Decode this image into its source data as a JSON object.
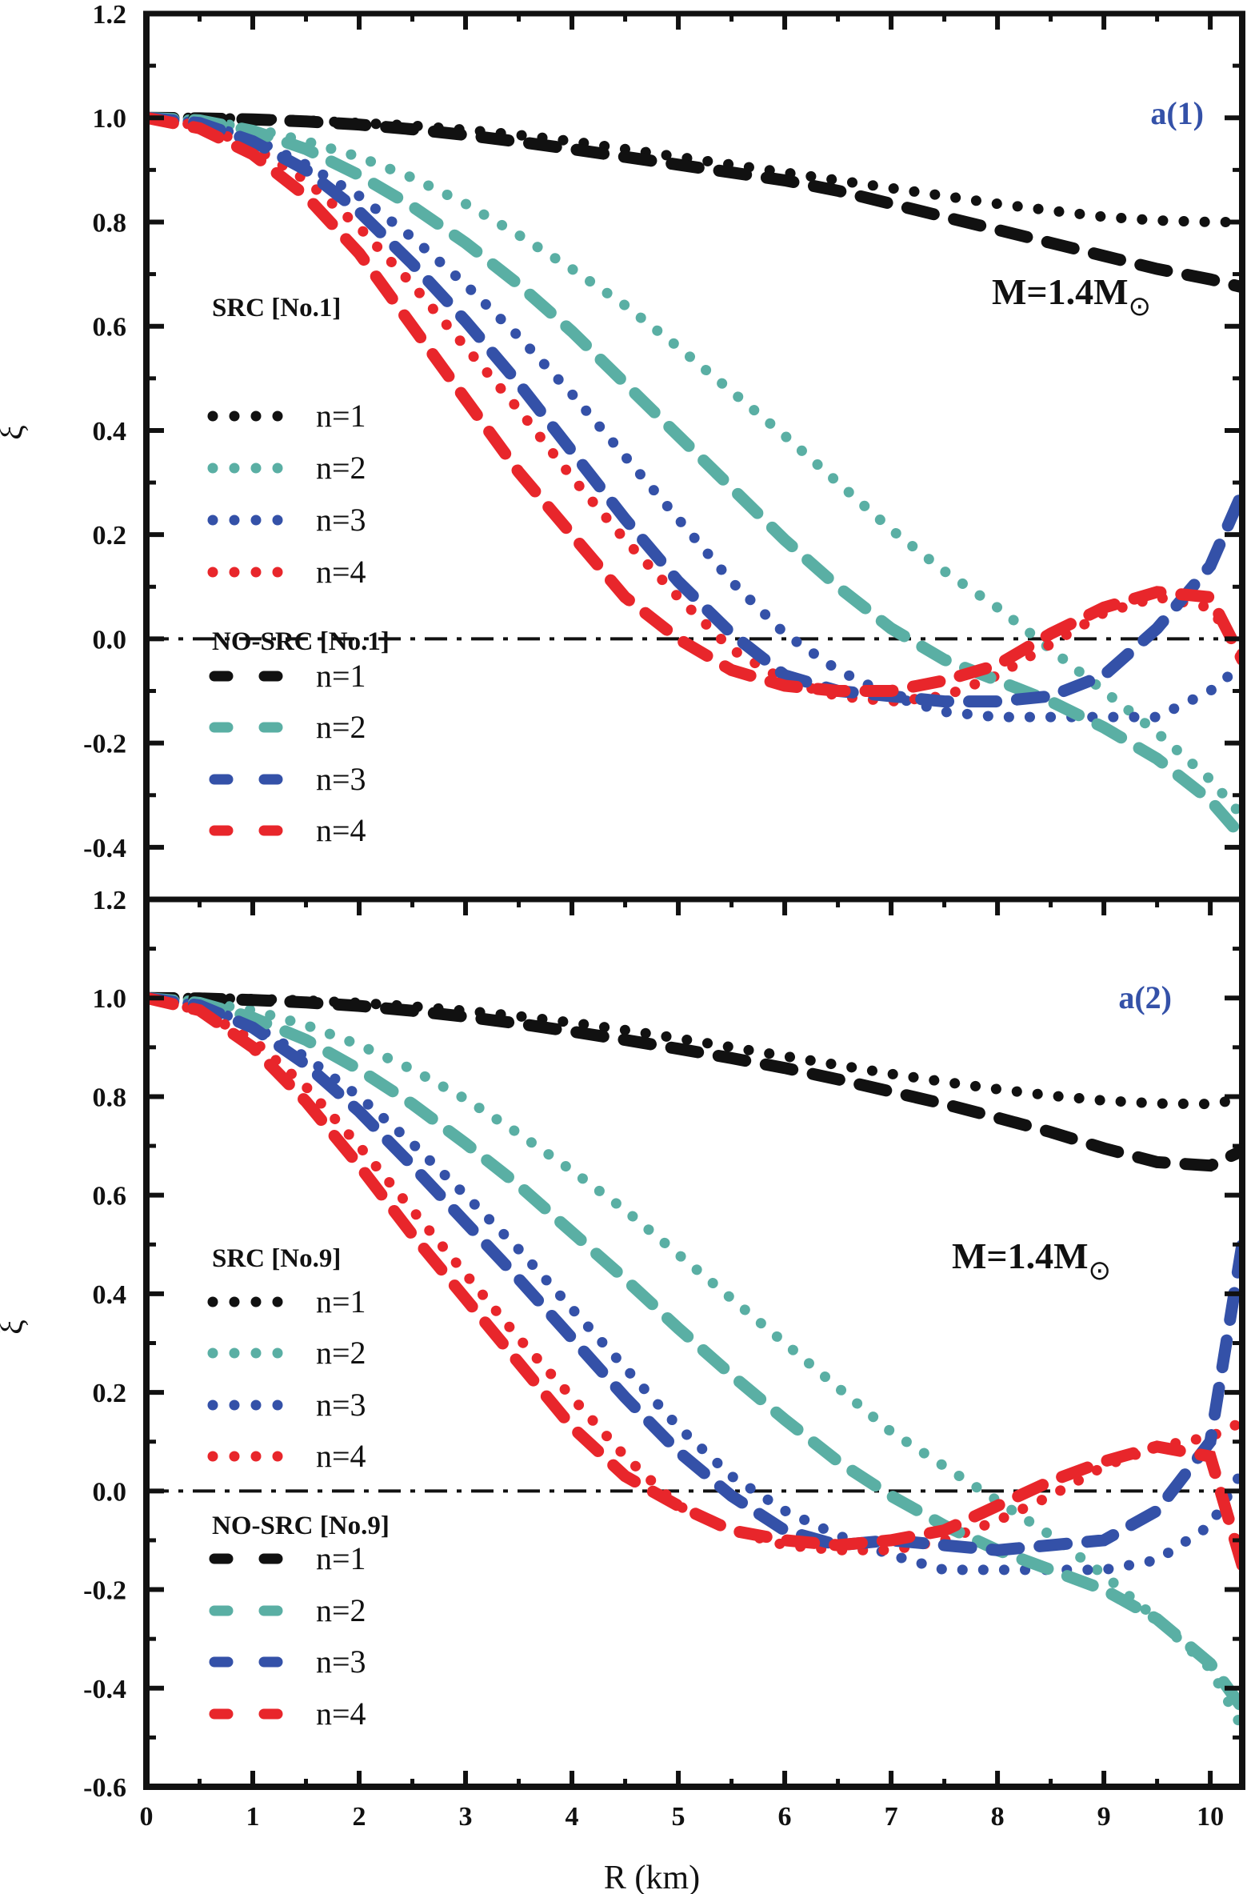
{
  "chart_data": [
    {
      "type": "line",
      "panel_tag": "a(1)",
      "annotation": "M=1.4M",
      "annotation_subscript": "⊙",
      "xlabel": "",
      "ylabel": "ξ",
      "xlim": [
        0,
        10.3
      ],
      "ylim": [
        -0.6,
        1.2
      ],
      "yticks": [
        "-0.4",
        "-0.2",
        "0.0",
        "0.2",
        "0.4",
        "0.6",
        "0.8",
        "1.0",
        "1.2"
      ],
      "ytick_values": [
        -0.4,
        -0.2,
        0.0,
        0.2,
        0.4,
        0.6,
        0.8,
        1.0,
        1.2
      ],
      "reference_line": {
        "y": 0.0,
        "style": "dash-dot"
      },
      "legend": [
        {
          "title": "SRC [No.1]",
          "style": "dotted",
          "entries": [
            "n=1",
            "n=2",
            "n=3",
            "n=4"
          ]
        },
        {
          "title": "NO-SRC [No.1]",
          "style": "dashed",
          "entries": [
            "n=1",
            "n=2",
            "n=3",
            "n=4"
          ]
        }
      ],
      "legend_position": "left",
      "x": [
        0,
        0.5,
        1,
        1.5,
        2,
        2.5,
        3,
        3.5,
        4,
        4.5,
        5,
        5.5,
        6,
        6.5,
        7,
        7.5,
        8,
        8.5,
        9,
        9.5,
        10,
        10.3
      ],
      "series": [
        {
          "name": "SRC n=1",
          "style": "dotted",
          "color": "#111111",
          "values": [
            1.0,
            1.0,
            0.998,
            0.995,
            0.99,
            0.985,
            0.977,
            0.967,
            0.955,
            0.94,
            0.925,
            0.91,
            0.895,
            0.88,
            0.865,
            0.85,
            0.835,
            0.822,
            0.81,
            0.803,
            0.8,
            0.8
          ]
        },
        {
          "name": "SRC n=2",
          "style": "dotted",
          "color": "#5aafa4",
          "values": [
            1.0,
            0.995,
            0.98,
            0.955,
            0.925,
            0.885,
            0.835,
            0.775,
            0.71,
            0.64,
            0.56,
            0.475,
            0.39,
            0.3,
            0.21,
            0.13,
            0.06,
            -0.02,
            -0.1,
            -0.18,
            -0.27,
            -0.34
          ]
        },
        {
          "name": "SRC n=3",
          "style": "dotted",
          "color": "#3451a8",
          "values": [
            1.0,
            0.99,
            0.96,
            0.91,
            0.85,
            0.77,
            0.68,
            0.58,
            0.47,
            0.35,
            0.23,
            0.11,
            0.01,
            -0.06,
            -0.11,
            -0.14,
            -0.15,
            -0.15,
            -0.15,
            -0.15,
            -0.1,
            -0.05
          ]
        },
        {
          "name": "SRC n=4",
          "style": "dotted",
          "color": "#e8262b",
          "values": [
            1.0,
            0.985,
            0.945,
            0.88,
            0.79,
            0.68,
            0.56,
            0.44,
            0.31,
            0.19,
            0.08,
            -0.02,
            -0.08,
            -0.11,
            -0.12,
            -0.11,
            -0.07,
            -0.01,
            0.05,
            0.08,
            0.06,
            -0.03
          ]
        },
        {
          "name": "NO-SRC n=1",
          "style": "dashed",
          "color": "#111111",
          "values": [
            1.0,
            0.999,
            0.997,
            0.993,
            0.987,
            0.978,
            0.967,
            0.954,
            0.94,
            0.925,
            0.91,
            0.895,
            0.88,
            0.86,
            0.835,
            0.81,
            0.785,
            0.76,
            0.735,
            0.71,
            0.69,
            0.675
          ]
        },
        {
          "name": "NO-SRC n=2",
          "style": "dashed",
          "color": "#5aafa4",
          "values": [
            1.0,
            0.995,
            0.975,
            0.94,
            0.89,
            0.83,
            0.76,
            0.68,
            0.59,
            0.49,
            0.39,
            0.29,
            0.19,
            0.1,
            0.02,
            -0.04,
            -0.08,
            -0.12,
            -0.17,
            -0.23,
            -0.31,
            -0.38
          ]
        },
        {
          "name": "NO-SRC n=3",
          "style": "dashed",
          "color": "#3451a8",
          "values": [
            1.0,
            0.99,
            0.955,
            0.9,
            0.82,
            0.72,
            0.61,
            0.49,
            0.36,
            0.23,
            0.11,
            0.01,
            -0.07,
            -0.1,
            -0.11,
            -0.12,
            -0.12,
            -0.11,
            -0.07,
            0.02,
            0.14,
            0.28
          ]
        },
        {
          "name": "NO-SRC n=4",
          "style": "dashed",
          "color": "#e8262b",
          "values": [
            1.0,
            0.98,
            0.93,
            0.85,
            0.74,
            0.6,
            0.46,
            0.32,
            0.2,
            0.08,
            0.0,
            -0.06,
            -0.09,
            -0.1,
            -0.1,
            -0.08,
            -0.05,
            0.01,
            0.06,
            0.09,
            0.08,
            -0.04
          ]
        }
      ]
    },
    {
      "type": "line",
      "panel_tag": "a(2)",
      "annotation": "M=1.4M",
      "annotation_subscript": "⊙",
      "xlabel": "R (km)",
      "ylabel": "ξ",
      "xlim": [
        0,
        10.3
      ],
      "ylim": [
        -0.6,
        1.2
      ],
      "xticks": [
        "0",
        "1",
        "2",
        "3",
        "4",
        "5",
        "6",
        "7",
        "8",
        "9",
        "10"
      ],
      "xtick_values": [
        0,
        1,
        2,
        3,
        4,
        5,
        6,
        7,
        8,
        9,
        10
      ],
      "yticks": [
        "-0.6",
        "-0.4",
        "-0.2",
        "0.0",
        "0.2",
        "0.4",
        "0.6",
        "0.8",
        "1.0",
        "1.2"
      ],
      "ytick_values": [
        -0.6,
        -0.4,
        -0.2,
        0.0,
        0.2,
        0.4,
        0.6,
        0.8,
        1.0,
        1.2
      ],
      "reference_line": {
        "y": 0.0,
        "style": "dash-dot"
      },
      "legend": [
        {
          "title": "SRC [No.9]",
          "style": "dotted",
          "entries": [
            "n=1",
            "n=2",
            "n=3",
            "n=4"
          ]
        },
        {
          "title": "NO-SRC [No.9]",
          "style": "dashed",
          "entries": [
            "n=1",
            "n=2",
            "n=3",
            "n=4"
          ]
        }
      ],
      "legend_position": "left",
      "x": [
        0,
        0.5,
        1,
        1.5,
        2,
        2.5,
        3,
        3.5,
        4,
        4.5,
        5,
        5.5,
        6,
        6.5,
        7,
        7.5,
        8,
        8.5,
        9,
        9.5,
        10,
        10.3
      ],
      "series": [
        {
          "name": "SRC n=1",
          "style": "dotted",
          "color": "#111111",
          "values": [
            1.0,
            1.0,
            0.998,
            0.995,
            0.99,
            0.983,
            0.974,
            0.963,
            0.95,
            0.935,
            0.918,
            0.9,
            0.882,
            0.864,
            0.846,
            0.83,
            0.815,
            0.802,
            0.792,
            0.786,
            0.785,
            0.795
          ]
        },
        {
          "name": "SRC n=2",
          "style": "dotted",
          "color": "#5aafa4",
          "values": [
            1.0,
            0.993,
            0.975,
            0.945,
            0.905,
            0.855,
            0.795,
            0.725,
            0.65,
            0.57,
            0.48,
            0.39,
            0.3,
            0.21,
            0.12,
            0.05,
            -0.02,
            -0.09,
            -0.17,
            -0.26,
            -0.36,
            -0.48
          ]
        },
        {
          "name": "SRC n=3",
          "style": "dotted",
          "color": "#3451a8",
          "values": [
            1.0,
            0.985,
            0.945,
            0.88,
            0.8,
            0.705,
            0.6,
            0.49,
            0.37,
            0.25,
            0.13,
            0.03,
            -0.04,
            -0.09,
            -0.13,
            -0.16,
            -0.16,
            -0.16,
            -0.16,
            -0.14,
            -0.07,
            0.04
          ]
        },
        {
          "name": "SRC n=4",
          "style": "dotted",
          "color": "#e8262b",
          "values": [
            1.0,
            0.975,
            0.915,
            0.82,
            0.7,
            0.57,
            0.44,
            0.31,
            0.19,
            0.07,
            -0.03,
            -0.08,
            -0.11,
            -0.12,
            -0.12,
            -0.1,
            -0.06,
            -0.01,
            0.05,
            0.09,
            0.11,
            0.14
          ]
        },
        {
          "name": "NO-SRC n=1",
          "style": "dashed",
          "color": "#111111",
          "values": [
            1.0,
            0.999,
            0.996,
            0.991,
            0.984,
            0.974,
            0.962,
            0.948,
            0.932,
            0.915,
            0.897,
            0.878,
            0.858,
            0.835,
            0.81,
            0.785,
            0.757,
            0.728,
            0.695,
            0.667,
            0.66,
            0.69
          ]
        },
        {
          "name": "NO-SRC n=2",
          "style": "dashed",
          "color": "#5aafa4",
          "values": [
            1.0,
            0.99,
            0.96,
            0.915,
            0.855,
            0.785,
            0.705,
            0.62,
            0.525,
            0.43,
            0.33,
            0.235,
            0.145,
            0.06,
            -0.01,
            -0.07,
            -0.12,
            -0.16,
            -0.2,
            -0.26,
            -0.35,
            -0.44
          ]
        },
        {
          "name": "NO-SRC n=3",
          "style": "dashed",
          "color": "#3451a8",
          "values": [
            1.0,
            0.985,
            0.94,
            0.865,
            0.77,
            0.66,
            0.545,
            0.43,
            0.31,
            0.19,
            0.08,
            -0.01,
            -0.08,
            -0.11,
            -0.1,
            -0.11,
            -0.12,
            -0.11,
            -0.1,
            -0.04,
            0.1,
            0.5
          ]
        },
        {
          "name": "NO-SRC n=4",
          "style": "dashed",
          "color": "#e8262b",
          "values": [
            1.0,
            0.975,
            0.9,
            0.79,
            0.66,
            0.52,
            0.39,
            0.26,
            0.13,
            0.03,
            -0.03,
            -0.08,
            -0.1,
            -0.11,
            -0.1,
            -0.08,
            -0.03,
            0.02,
            0.06,
            0.09,
            0.07,
            -0.15
          ]
        }
      ]
    }
  ]
}
